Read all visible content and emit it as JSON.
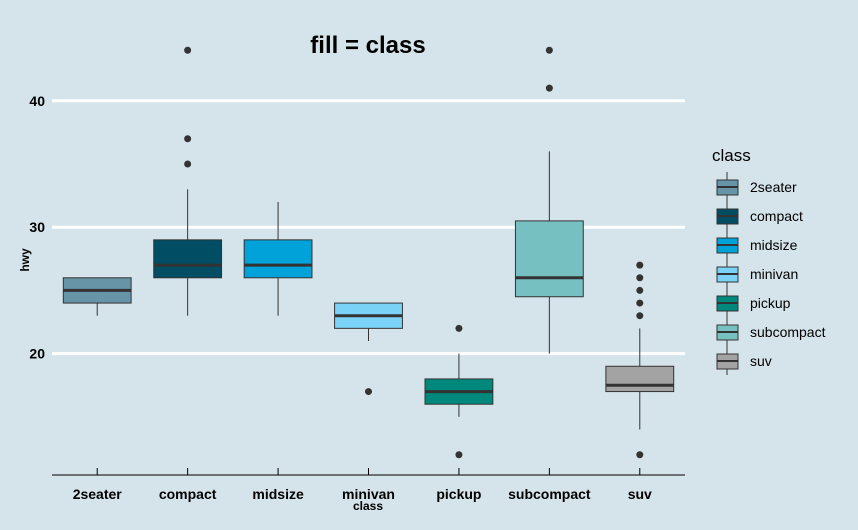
{
  "chart_data": {
    "type": "boxplot",
    "title": "fill = class",
    "xlabel": "class",
    "ylabel": "hwy",
    "ylim": [
      10.4,
      45.6
    ],
    "yticks": [
      20,
      30,
      40
    ],
    "grid": "major y only",
    "legend_position": "right",
    "legend_title": "class",
    "categories": [
      "2seater",
      "compact",
      "midsize",
      "minivan",
      "pickup",
      "subcompact",
      "suv"
    ],
    "series": [
      {
        "name": "2seater",
        "color": "#6794a7",
        "q1": 24,
        "median": 25,
        "q3": 26,
        "whisker_low": 23,
        "whisker_high": 26,
        "outliers": []
      },
      {
        "name": "compact",
        "color": "#014d64",
        "q1": 26,
        "median": 27,
        "q3": 29,
        "whisker_low": 23,
        "whisker_high": 33,
        "outliers": [
          35,
          37,
          44
        ]
      },
      {
        "name": "midsize",
        "color": "#01a2d9",
        "q1": 26,
        "median": 27,
        "q3": 29,
        "whisker_low": 23,
        "whisker_high": 32,
        "outliers": []
      },
      {
        "name": "minivan",
        "color": "#7ad2f6",
        "q1": 22,
        "median": 23,
        "q3": 24,
        "whisker_low": 21,
        "whisker_high": 24,
        "outliers": [
          17
        ]
      },
      {
        "name": "pickup",
        "color": "#00887d",
        "q1": 16,
        "median": 17,
        "q3": 18,
        "whisker_low": 15,
        "whisker_high": 20,
        "outliers": [
          12,
          22
        ]
      },
      {
        "name": "subcompact",
        "color": "#76c0c1",
        "q1": 24.5,
        "median": 26,
        "q3": 30.5,
        "whisker_low": 20,
        "whisker_high": 36,
        "outliers": [
          41,
          44
        ]
      },
      {
        "name": "suv",
        "color": "#a3a3a3",
        "q1": 17,
        "median": 17.5,
        "q3": 19,
        "whisker_low": 14,
        "whisker_high": 22,
        "outliers": [
          12,
          23,
          24,
          25,
          26,
          27
        ]
      }
    ]
  }
}
